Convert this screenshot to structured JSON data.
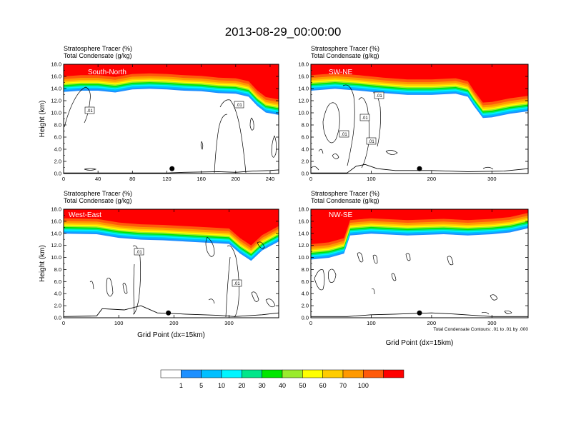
{
  "title": "2013-08-29_00:00:00",
  "colorbar": {
    "colors": [
      "#ffffff",
      "#1e90ff",
      "#00bfff",
      "#00f5ff",
      "#00e68a",
      "#00e600",
      "#9aeb2d",
      "#ffff00",
      "#ffcc00",
      "#ff9900",
      "#ff5a0a",
      "#ff0000"
    ],
    "labels": [
      "1",
      "5",
      "10",
      "20",
      "30",
      "40",
      "50",
      "60",
      "70",
      "100"
    ]
  },
  "chart_data": [
    {
      "type": "contour",
      "cross_section": "South-North",
      "title_lines": [
        "Stratosphere Tracer   (%)",
        "Total Condensate   (g/kg)"
      ],
      "ylabel": "Height (km)",
      "xlabel": "",
      "x_ticks": [
        "0",
        "40",
        "80",
        "120",
        "160",
        "200",
        "240"
      ],
      "y_ticks": [
        "0.0",
        "2.0",
        "4.0",
        "6.0",
        "8.0",
        "10.0",
        "12.0",
        "14.0",
        "16.0",
        "18.0"
      ],
      "xlim": [
        0,
        250
      ],
      "ylim": [
        0,
        18
      ],
      "tropopause_km": [
        [
          0,
          13.8
        ],
        [
          20,
          14.0
        ],
        [
          40,
          14.0
        ],
        [
          60,
          13.7
        ],
        [
          80,
          14.2
        ],
        [
          100,
          14.3
        ],
        [
          120,
          14.2
        ],
        [
          140,
          14.0
        ],
        [
          160,
          13.9
        ],
        [
          180,
          13.6
        ],
        [
          200,
          13.5
        ],
        [
          215,
          13.0
        ],
        [
          225,
          11.5
        ],
        [
          235,
          10.4
        ],
        [
          250,
          10.0
        ]
      ],
      "contour_labels": [
        ".01",
        ".01"
      ],
      "terrain_km": [
        [
          0,
          0.1
        ],
        [
          120,
          0.1
        ],
        [
          140,
          0.2
        ],
        [
          180,
          0.3
        ],
        [
          200,
          0.2
        ],
        [
          220,
          0.4
        ],
        [
          240,
          0.5
        ],
        [
          250,
          0.6
        ]
      ],
      "marker_x": 126
    },
    {
      "type": "contour",
      "cross_section": "SW-NE",
      "title_lines": [
        "Stratosphere Tracer   (%)",
        "Total Condensate   (g/kg)"
      ],
      "ylabel": "",
      "xlabel": "",
      "x_ticks": [
        "0",
        "100",
        "200",
        "300"
      ],
      "y_ticks": [
        "0.0",
        "2.0",
        "4.0",
        "6.0",
        "8.0",
        "10.0",
        "12.0",
        "14.0",
        "16.0",
        "18.0"
      ],
      "xlim": [
        0,
        360
      ],
      "ylim": [
        0,
        18
      ],
      "tropopause_km": [
        [
          0,
          14.0
        ],
        [
          40,
          14.3
        ],
        [
          80,
          14.0
        ],
        [
          120,
          13.6
        ],
        [
          160,
          13.3
        ],
        [
          200,
          13.3
        ],
        [
          240,
          13.5
        ],
        [
          260,
          13.0
        ],
        [
          270,
          11.5
        ],
        [
          285,
          9.5
        ],
        [
          300,
          9.6
        ],
        [
          330,
          10.2
        ],
        [
          360,
          10.6
        ]
      ],
      "contour_labels": [
        ".01",
        ".01",
        ".01",
        ".01"
      ],
      "terrain_km": [
        [
          0,
          0.1
        ],
        [
          60,
          0.1
        ],
        [
          75,
          1.2
        ],
        [
          90,
          1.5
        ],
        [
          110,
          0.8
        ],
        [
          140,
          0.5
        ],
        [
          200,
          0.5
        ],
        [
          260,
          0.3
        ],
        [
          320,
          0.4
        ],
        [
          360,
          0.8
        ]
      ],
      "marker_x": 180
    },
    {
      "type": "contour",
      "cross_section": "West-East",
      "title_lines": [
        "Stratosphere Tracer   (%)",
        "Total Condensate   (g/kg)"
      ],
      "ylabel": "Height (km)",
      "xlabel": "Grid Point (dx=15km)",
      "x_ticks": [
        "0",
        "100",
        "200",
        "300"
      ],
      "y_ticks": [
        "0.0",
        "2.0",
        "4.0",
        "6.0",
        "8.0",
        "10.0",
        "12.0",
        "14.0",
        "16.0",
        "18.0"
      ],
      "xlim": [
        0,
        390
      ],
      "ylim": [
        0,
        18
      ],
      "tropopause_km": [
        [
          0,
          14.3
        ],
        [
          60,
          14.2
        ],
        [
          100,
          13.6
        ],
        [
          140,
          13.3
        ],
        [
          180,
          13.2
        ],
        [
          220,
          13.0
        ],
        [
          260,
          12.8
        ],
        [
          300,
          12.6
        ],
        [
          320,
          11.0
        ],
        [
          340,
          9.8
        ],
        [
          360,
          11.5
        ],
        [
          390,
          13.0
        ]
      ],
      "contour_labels": [
        ".01",
        ".01"
      ],
      "terrain_km": [
        [
          0,
          0.2
        ],
        [
          60,
          0.3
        ],
        [
          70,
          1.5
        ],
        [
          110,
          1.3
        ],
        [
          140,
          2.0
        ],
        [
          170,
          0.8
        ],
        [
          220,
          0.6
        ],
        [
          280,
          0.4
        ],
        [
          310,
          0.2
        ],
        [
          360,
          0.5
        ],
        [
          390,
          0.8
        ]
      ],
      "marker_x": 190
    },
    {
      "type": "contour",
      "cross_section": "NW-SE",
      "title_lines": [
        "Stratosphere Tracer   (%)",
        "Total Condensate   (g/kg)"
      ],
      "ylabel": "",
      "xlabel": "Grid Point (dx=15km)",
      "x_ticks": [
        "0",
        "100",
        "200",
        "300"
      ],
      "y_ticks": [
        "0.0",
        "2.0",
        "4.0",
        "6.0",
        "8.0",
        "10.0",
        "12.0",
        "14.0",
        "16.0",
        "18.0"
      ],
      "xlim": [
        0,
        360
      ],
      "ylim": [
        0,
        18
      ],
      "tropopause_km": [
        [
          0,
          10.0
        ],
        [
          30,
          10.3
        ],
        [
          55,
          11.0
        ],
        [
          65,
          14.0
        ],
        [
          100,
          14.3
        ],
        [
          160,
          14.0
        ],
        [
          220,
          14.2
        ],
        [
          260,
          14.0
        ],
        [
          300,
          14.2
        ],
        [
          330,
          14.5
        ],
        [
          360,
          15.2
        ]
      ],
      "contour_labels": [],
      "terrain_km": [
        [
          0,
          0.2
        ],
        [
          60,
          0.2
        ],
        [
          100,
          0.5
        ],
        [
          140,
          0.6
        ],
        [
          200,
          0.8
        ],
        [
          240,
          0.6
        ],
        [
          300,
          0.2
        ],
        [
          360,
          0.2
        ]
      ],
      "marker_x": 180,
      "note": "Total Condensate Contours: .01 to .01 by .000"
    }
  ]
}
